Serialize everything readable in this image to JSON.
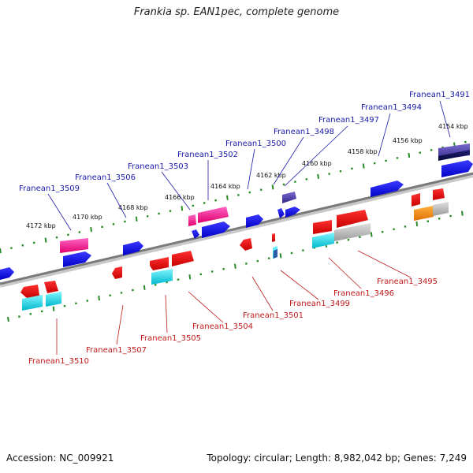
{
  "title": "Frankia sp. EAN1pec, complete genome",
  "footer": {
    "accession": "Accession: NC_009921",
    "stats": "Topology: circular; Length: 8,982,042 bp; Genes: 7,249"
  },
  "colors": {
    "upper_label": "#1a1aa8",
    "lower_label": "#c01a1a",
    "backbone": "#808080",
    "tick": "#2a8a2a"
  },
  "scale_ticks": [
    "4154 kbp",
    "4156 kbp",
    "4158 kbp",
    "4160 kbp",
    "4162 kbp",
    "4164 kbp",
    "4166 kbp",
    "4168 kbp",
    "4170 kbp",
    "4172 kbp"
  ],
  "upper_labels": [
    "Franean1_3491",
    "Franean1_3494",
    "Franean1_3497",
    "Franean1_3498",
    "Franean1_3500",
    "Franean1_3502",
    "Franean1_3503",
    "Franean1_3506",
    "Franean1_3509"
  ],
  "lower_labels": [
    "Franean1_3495",
    "Franean1_3496",
    "Franean1_3499",
    "Franean1_3501",
    "Franean1_3504",
    "Franean1_3505",
    "Franean1_3507",
    "Franean1_3510"
  ]
}
